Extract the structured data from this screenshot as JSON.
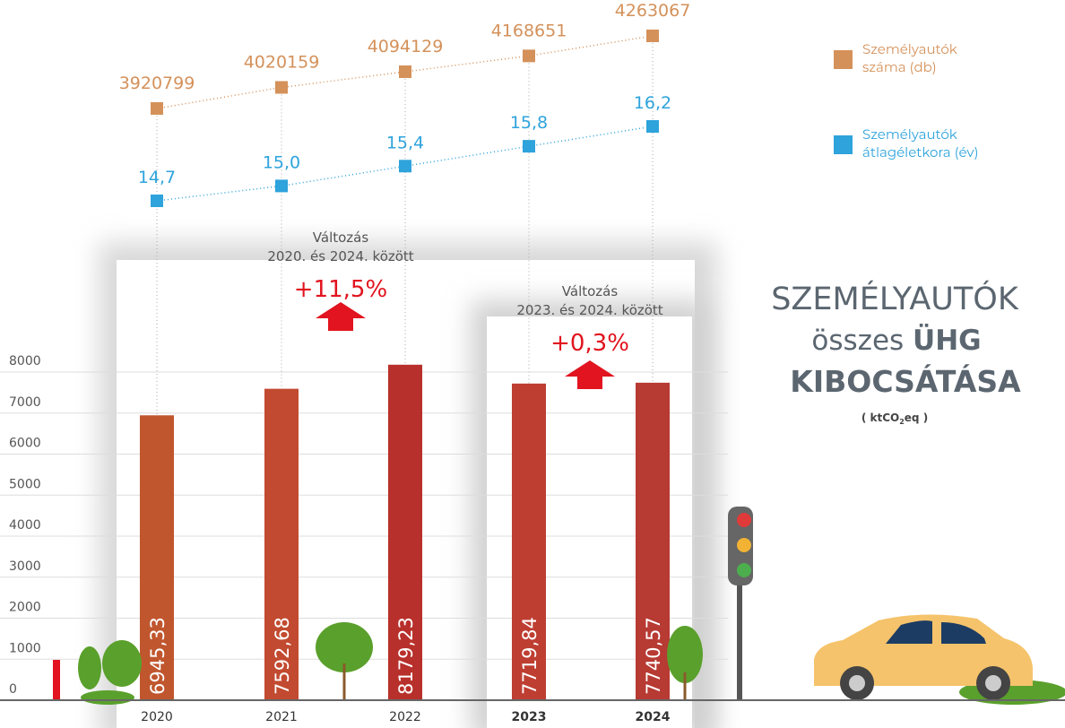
{
  "chart_data": [
    {
      "type": "bar",
      "title_lines": [
        [
          "SZEMÉLYAUTÓK"
        ],
        [
          "összes ",
          "ÜHG"
        ],
        [
          "KIBOCSÁTÁSA"
        ],
        [
          "( ktCO",
          "2",
          "eq )"
        ]
      ],
      "categories": [
        "2020",
        "2021",
        "2022",
        "2023",
        "2024"
      ],
      "values": [
        6945.33,
        7592.68,
        8179.23,
        7719.84,
        7740.57
      ],
      "value_labels": [
        "6945,33",
        "7592,68",
        "8179,23",
        "7719,84",
        "7740,57"
      ],
      "colors": [
        "#c0562e",
        "#c24a30",
        "#b8302b",
        "#be3e32",
        "#b73a33"
      ],
      "ylim": [
        0,
        8000
      ],
      "yticks": [
        0,
        1000,
        2000,
        3000,
        4000,
        5000,
        6000,
        7000,
        8000
      ],
      "grid": true,
      "annotations": [
        {
          "title": "Változás",
          "subtitle": "2020. és 2024. között",
          "change": "+11,5%"
        },
        {
          "title": "Változás",
          "subtitle": "2023. és 2024. között",
          "change": "+0,3%"
        }
      ]
    },
    {
      "type": "line",
      "series": [
        {
          "name": "Személyautók száma (db)",
          "color": "#d4915a",
          "values": [
            3920799,
            4020159,
            4094129,
            4168651,
            4263067
          ]
        },
        {
          "name": "Személyautók átlagéletkora (év)",
          "color": "#2ea3dc",
          "values": [
            14.7,
            15.0,
            15.4,
            15.8,
            16.2
          ],
          "value_labels": [
            "14,7",
            "15,0",
            "15,4",
            "15,8",
            "16,2"
          ]
        }
      ]
    }
  ]
}
